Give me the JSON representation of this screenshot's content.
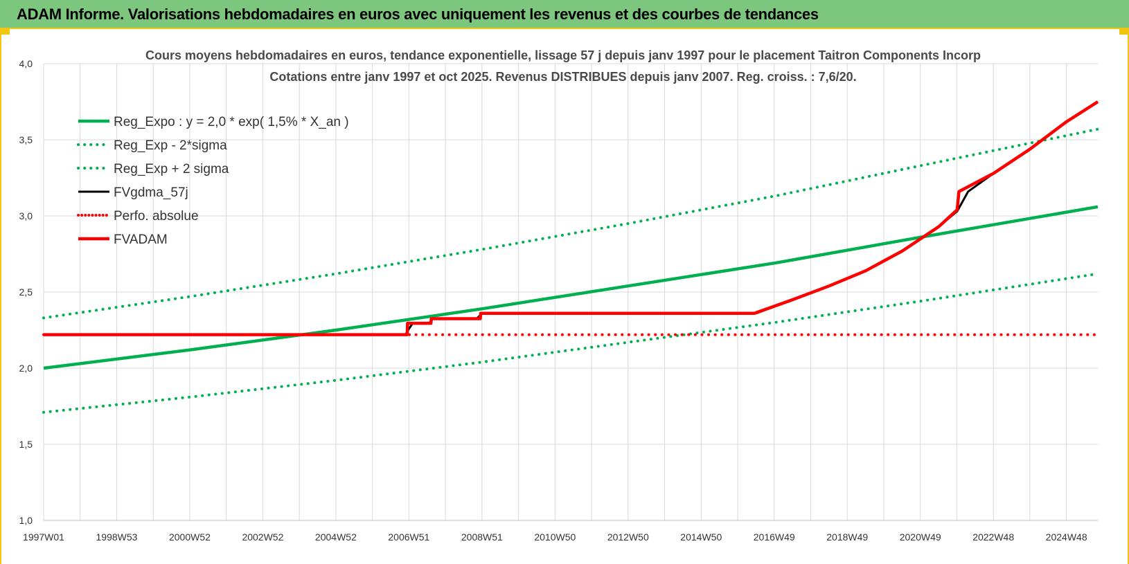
{
  "banner": {
    "title": "ADAM Informe. Valorisations hebdomadaires en euros avec uniquement les revenus et des courbes de tendances"
  },
  "colors": {
    "banner_bg": "#7dc67e",
    "accent": "#f2c511",
    "green": "#00b050",
    "black": "#000000",
    "red": "#ff0000",
    "grid": "#d9d9d9"
  },
  "chart_data": {
    "type": "line",
    "title": "Cours moyens hebdomadaires en euros, tendance exponentielle, lissage 57 j depuis janv 1997 pour le placement Taitron Components Incorp",
    "subtitle": "Cotations entre janv 1997 et oct 2025. Revenus DISTRIBUES depuis janv 2007.  Reg. croiss. : 7,6/20.",
    "xlabel": "",
    "ylabel": "",
    "ylim": [
      1.0,
      4.0
    ],
    "y_ticks": [
      "1,0",
      "1,5",
      "2,0",
      "2,5",
      "3,0",
      "3,5",
      "4,0"
    ],
    "xlim": [
      1997.0,
      2025.85
    ],
    "x_tick_labels": [
      "1997W01",
      "1998W53",
      "2000W52",
      "2002W52",
      "2004W52",
      "2006W51",
      "2008W51",
      "2010W50",
      "2012W50",
      "2014W50",
      "2016W49",
      "2018W49",
      "2020W49",
      "2022W48",
      "2024W48"
    ],
    "grid": true,
    "legend_position": "top-left",
    "series": [
      {
        "name": "Reg_Expo : y = 2,0 * exp( 1,5% *  X_an )",
        "style": "solid-thick",
        "color": "#00b050",
        "x": [
          1997.0,
          2001.0,
          2005.0,
          2009.0,
          2013.0,
          2017.0,
          2021.0,
          2025.85
        ],
        "y": [
          2.0,
          2.12,
          2.25,
          2.39,
          2.54,
          2.69,
          2.86,
          3.06
        ]
      },
      {
        "name": "Reg_Exp - 2*sigma",
        "style": "dotted",
        "color": "#00b050",
        "x": [
          1997.0,
          2001.0,
          2005.0,
          2009.0,
          2013.0,
          2017.0,
          2021.0,
          2025.85
        ],
        "y": [
          1.71,
          1.81,
          1.92,
          2.04,
          2.17,
          2.3,
          2.44,
          2.62
        ]
      },
      {
        "name": "Reg_Exp + 2 sigma",
        "style": "dotted",
        "color": "#00b050",
        "x": [
          1997.0,
          2001.0,
          2005.0,
          2009.0,
          2013.0,
          2017.0,
          2021.0,
          2025.85
        ],
        "y": [
          2.33,
          2.47,
          2.62,
          2.78,
          2.95,
          3.13,
          3.33,
          3.57
        ]
      },
      {
        "name": "FVgdma_57j",
        "style": "solid",
        "color": "#000000",
        "x": [
          1997.0,
          2006.9,
          2007.0,
          2007.1,
          2007.55,
          2007.65,
          2008.85,
          2009.0,
          2016.5,
          2017.5,
          2018.5,
          2019.5,
          2020.5,
          2021.5,
          2022.0,
          2022.3,
          2023.0,
          2024.0,
          2025.0,
          2025.85
        ],
        "y": [
          2.22,
          2.22,
          2.26,
          2.295,
          2.295,
          2.325,
          2.325,
          2.36,
          2.36,
          2.45,
          2.54,
          2.64,
          2.77,
          2.93,
          3.03,
          3.16,
          3.28,
          3.44,
          3.62,
          3.75
        ]
      },
      {
        "name": "Perfo. absolue",
        "style": "dotted",
        "color": "#ff0000",
        "x": [
          1997.0,
          2025.85
        ],
        "y": [
          2.22,
          2.22
        ]
      },
      {
        "name": "FVADAM",
        "style": "solid-thick",
        "color": "#ff0000",
        "x": [
          1997.0,
          2006.95,
          2006.96,
          2007.6,
          2007.61,
          2008.95,
          2008.96,
          2016.45,
          2017.5,
          2018.5,
          2019.5,
          2020.5,
          2021.5,
          2022.0,
          2022.05,
          2023.0,
          2024.0,
          2025.0,
          2025.85
        ],
        "y": [
          2.22,
          2.22,
          2.295,
          2.295,
          2.325,
          2.325,
          2.36,
          2.36,
          2.45,
          2.54,
          2.64,
          2.77,
          2.93,
          3.04,
          3.16,
          3.28,
          3.44,
          3.62,
          3.75
        ]
      }
    ]
  }
}
